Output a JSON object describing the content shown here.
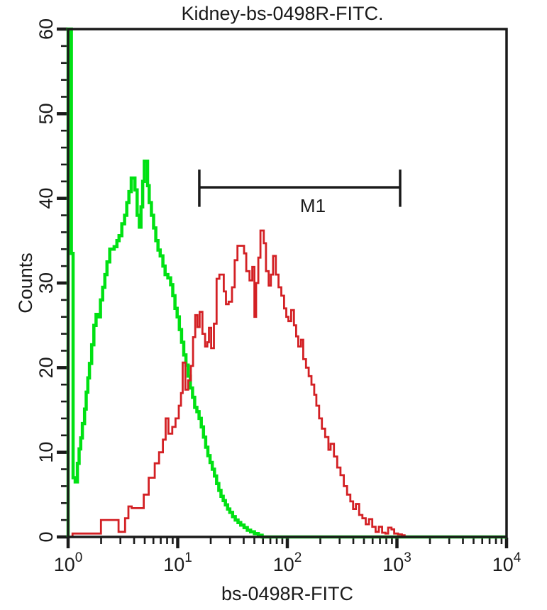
{
  "figure": {
    "title": "Kidney-bs-0498R-FITC.",
    "x_axis_label": "bs-0498R-FITC",
    "y_axis_label": "Counts"
  },
  "colors": {
    "axis": "#1a1a1a",
    "control_green": "#00e113",
    "sample_red": "#d32024",
    "background": "#ffffff"
  },
  "chart_data": {
    "type": "line",
    "subtype": "flow-cytometry-step-histogram-overlay",
    "title": "Kidney-bs-0498R-FITC.",
    "xlabel": "bs-0498R-FITC",
    "ylabel": "Counts",
    "x_scale": "log10",
    "x_range_log10": [
      0,
      4
    ],
    "x_major_tick_labels": [
      "10^0",
      "10^1",
      "10^2",
      "10^3",
      "10^4"
    ],
    "x_tick_exponents": [
      0,
      1,
      2,
      3,
      4
    ],
    "x_minor_ticks_per_decade": [
      2,
      3,
      4,
      5,
      6,
      7,
      8,
      9
    ],
    "ylim": [
      0,
      60
    ],
    "y_major_ticks": [
      0,
      10,
      20,
      30,
      40,
      50,
      60
    ],
    "y_minor_tick_step": 2,
    "grid": false,
    "legend_position": "none",
    "gate_marker": {
      "label": "M1",
      "x_log10_start": 1.197,
      "x_log10_end": 3.029,
      "y_counts": 41.3,
      "cap_top_counts": 43.4,
      "cap_bottom_counts": 39.0,
      "label_x_log10": 2.233,
      "label_y_counts": 38.4
    },
    "series": [
      {
        "name": "negative control (green)",
        "color": "#00e113",
        "stroke_width": 4.5,
        "points_log10x_counts": [
          [
            0,
            60
          ],
          [
            0.03,
            33.5
          ],
          [
            0.045,
            7
          ],
          [
            0.065,
            6.5
          ],
          [
            0.085,
            8.7
          ],
          [
            0.1,
            10.4
          ],
          [
            0.115,
            11.7
          ],
          [
            0.13,
            13.4
          ],
          [
            0.15,
            15.1
          ],
          [
            0.165,
            17.1
          ],
          [
            0.18,
            18.8
          ],
          [
            0.195,
            20.5
          ],
          [
            0.215,
            22.7
          ],
          [
            0.235,
            25
          ],
          [
            0.255,
            26.3
          ],
          [
            0.275,
            26
          ],
          [
            0.295,
            28
          ],
          [
            0.315,
            29.5
          ],
          [
            0.335,
            31
          ],
          [
            0.355,
            32.5
          ],
          [
            0.38,
            34
          ],
          [
            0.42,
            34.3
          ],
          [
            0.445,
            35
          ],
          [
            0.465,
            35.6
          ],
          [
            0.49,
            37
          ],
          [
            0.515,
            38
          ],
          [
            0.535,
            39.5
          ],
          [
            0.555,
            40.8
          ],
          [
            0.576,
            42.4
          ],
          [
            0.61,
            41
          ],
          [
            0.63,
            38
          ],
          [
            0.65,
            36.6
          ],
          [
            0.665,
            39
          ],
          [
            0.68,
            42
          ],
          [
            0.695,
            44.4
          ],
          [
            0.725,
            41.5
          ],
          [
            0.74,
            39.5
          ],
          [
            0.76,
            38
          ],
          [
            0.78,
            36.5
          ],
          [
            0.8,
            35
          ],
          [
            0.82,
            33.9
          ],
          [
            0.84,
            33.2
          ],
          [
            0.865,
            32
          ],
          [
            0.885,
            31
          ],
          [
            0.91,
            30.6
          ],
          [
            0.935,
            29.8
          ],
          [
            0.955,
            28.5
          ],
          [
            0.975,
            27
          ],
          [
            0.995,
            26
          ],
          [
            1.015,
            24.5
          ],
          [
            1.035,
            23
          ],
          [
            1.055,
            21.5
          ],
          [
            1.075,
            20.3
          ],
          [
            1.095,
            19
          ],
          [
            1.115,
            17.6
          ],
          [
            1.135,
            16.5
          ],
          [
            1.155,
            15.3
          ],
          [
            1.175,
            14.8
          ],
          [
            1.195,
            14
          ],
          [
            1.215,
            13
          ],
          [
            1.235,
            11.8
          ],
          [
            1.255,
            10.6
          ],
          [
            1.275,
            9.6
          ],
          [
            1.295,
            8.8
          ],
          [
            1.315,
            8
          ],
          [
            1.335,
            7.2
          ],
          [
            1.355,
            6.3
          ],
          [
            1.375,
            5.5
          ],
          [
            1.395,
            4.8
          ],
          [
            1.415,
            4.3
          ],
          [
            1.435,
            3.8
          ],
          [
            1.455,
            3.3
          ],
          [
            1.475,
            2.9
          ],
          [
            1.5,
            2.4
          ],
          [
            1.525,
            2
          ],
          [
            1.55,
            1.7
          ],
          [
            1.575,
            1.4
          ],
          [
            1.605,
            1.1
          ],
          [
            1.635,
            0.8
          ],
          [
            1.665,
            0.6
          ],
          [
            1.7,
            0.4
          ],
          [
            1.735,
            0.2
          ],
          [
            1.77,
            0
          ],
          [
            4,
            0
          ]
        ]
      },
      {
        "name": "bs-0498R-FITC stained (red)",
        "color": "#d32024",
        "stroke_width": 2.8,
        "points_log10x_counts": [
          [
            0.04,
            0.4
          ],
          [
            0.3,
            2
          ],
          [
            0.46,
            0.6
          ],
          [
            0.52,
            2.2
          ],
          [
            0.55,
            3.6
          ],
          [
            0.58,
            3.4
          ],
          [
            0.69,
            5
          ],
          [
            0.735,
            7
          ],
          [
            0.79,
            8.7
          ],
          [
            0.83,
            10
          ],
          [
            0.865,
            11.5
          ],
          [
            0.89,
            14
          ],
          [
            0.915,
            12.2
          ],
          [
            0.95,
            13
          ],
          [
            0.98,
            14
          ],
          [
            1.01,
            15.5
          ],
          [
            1.03,
            17
          ],
          [
            1.045,
            20.6
          ],
          [
            1.07,
            17.4
          ],
          [
            1.095,
            18.5
          ],
          [
            1.12,
            20.2
          ],
          [
            1.14,
            23.6
          ],
          [
            1.16,
            26.2
          ],
          [
            1.18,
            24.8
          ],
          [
            1.2,
            26.6
          ],
          [
            1.225,
            24
          ],
          [
            1.25,
            22.5
          ],
          [
            1.27,
            23
          ],
          [
            1.285,
            24.7
          ],
          [
            1.305,
            22.3
          ],
          [
            1.33,
            25.2
          ],
          [
            1.355,
            30.5
          ],
          [
            1.38,
            31
          ],
          [
            1.42,
            29
          ],
          [
            1.44,
            27.5
          ],
          [
            1.465,
            27.8
          ],
          [
            1.495,
            29.5
          ],
          [
            1.52,
            32.7
          ],
          [
            1.545,
            34.4
          ],
          [
            1.605,
            33.5
          ],
          [
            1.625,
            31.4
          ],
          [
            1.655,
            30.3
          ],
          [
            1.68,
            31.9
          ],
          [
            1.7,
            26
          ],
          [
            1.715,
            30
          ],
          [
            1.735,
            33
          ],
          [
            1.755,
            36.2
          ],
          [
            1.785,
            34.7
          ],
          [
            1.805,
            31.4
          ],
          [
            1.83,
            29.7
          ],
          [
            1.85,
            31
          ],
          [
            1.87,
            33.2
          ],
          [
            1.895,
            31
          ],
          [
            1.92,
            29.5
          ],
          [
            1.945,
            28.5
          ],
          [
            1.97,
            27
          ],
          [
            1.99,
            26
          ],
          [
            2.01,
            25.5
          ],
          [
            2.035,
            26.8
          ],
          [
            2.06,
            25
          ],
          [
            2.08,
            23.7
          ],
          [
            2.1,
            22.5
          ],
          [
            2.125,
            23.3
          ],
          [
            2.145,
            21
          ],
          [
            2.17,
            20
          ],
          [
            2.195,
            19
          ],
          [
            2.22,
            18
          ],
          [
            2.245,
            16.8
          ],
          [
            2.265,
            15.5
          ],
          [
            2.29,
            14
          ],
          [
            2.315,
            12.8
          ],
          [
            2.345,
            11.8
          ],
          [
            2.375,
            10.3
          ],
          [
            2.395,
            11
          ],
          [
            2.425,
            9.5
          ],
          [
            2.455,
            8.2
          ],
          [
            2.485,
            7.3
          ],
          [
            2.515,
            6
          ],
          [
            2.545,
            5
          ],
          [
            2.575,
            4.2
          ],
          [
            2.6,
            3.3
          ],
          [
            2.625,
            3.9
          ],
          [
            2.655,
            2.6
          ],
          [
            2.685,
            2.2
          ],
          [
            2.715,
            1.5
          ],
          [
            2.745,
            2.1
          ],
          [
            2.775,
            1.2
          ],
          [
            2.805,
            0.6
          ],
          [
            2.835,
            1.2
          ],
          [
            2.865,
            0.5
          ],
          [
            2.895,
            0.4
          ],
          [
            2.92,
            1.1
          ],
          [
            2.95,
            0.9
          ],
          [
            2.975,
            0.4
          ],
          [
            3.01,
            0.3
          ],
          [
            3.045,
            0.2
          ],
          [
            3.07,
            0
          ]
        ]
      }
    ]
  }
}
